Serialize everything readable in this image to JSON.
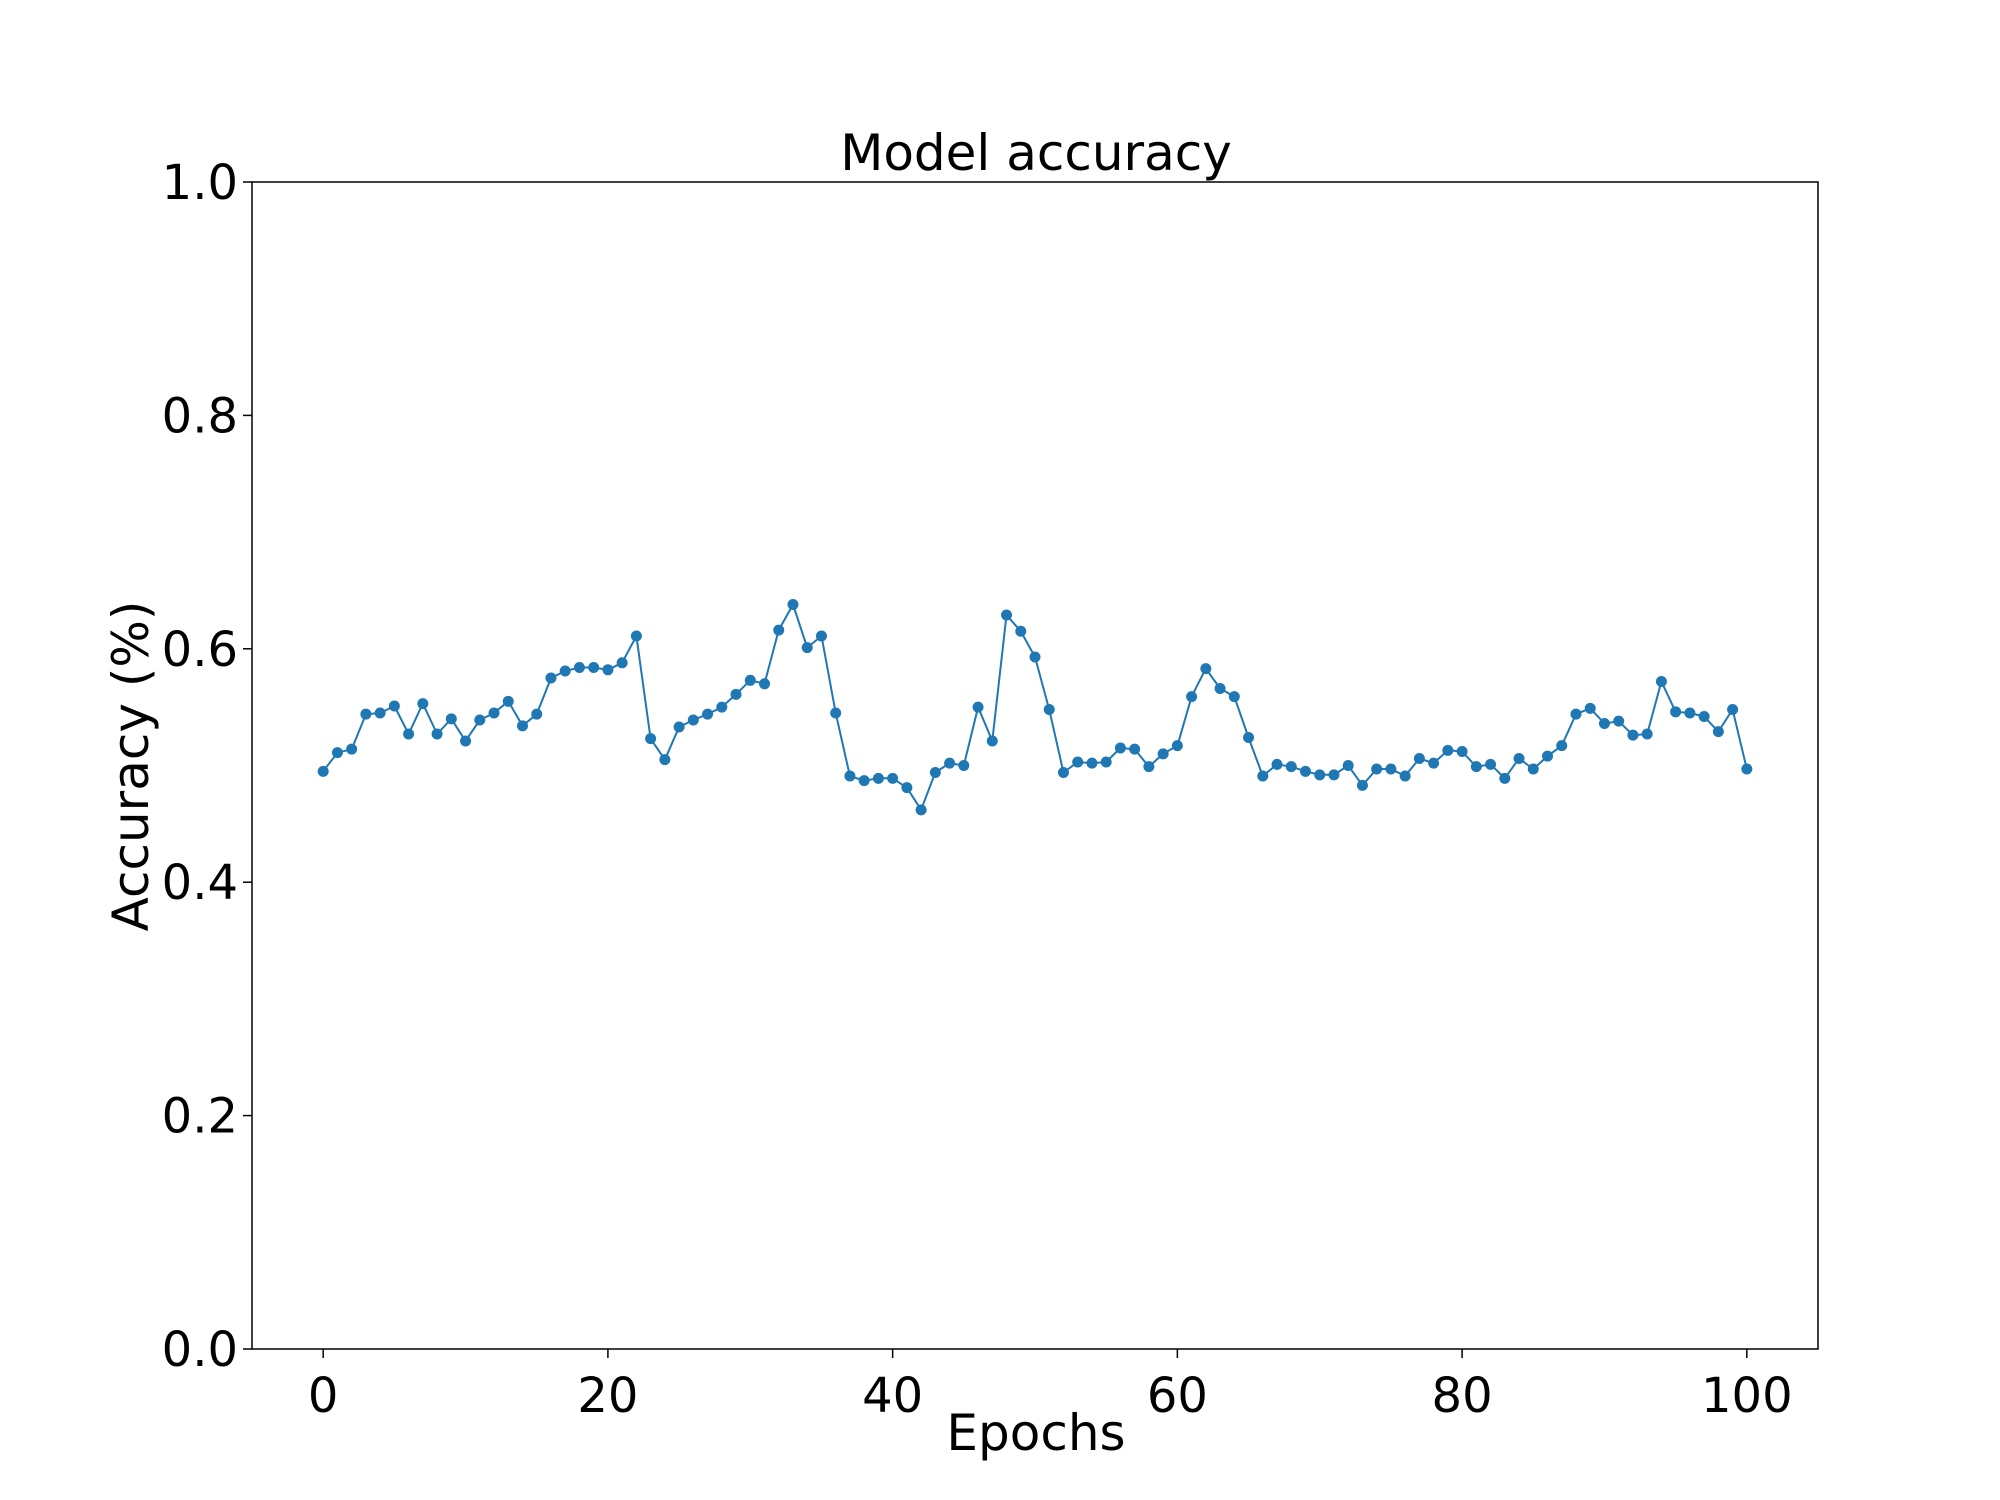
{
  "chart_data": {
    "type": "line",
    "title": "Model accuracy",
    "xlabel": "Epochs",
    "ylabel": "Accuracy (%)",
    "xlim": [
      -5,
      105
    ],
    "ylim": [
      0.0,
      1.0
    ],
    "xticks": [
      0,
      20,
      40,
      60,
      80,
      100
    ],
    "xtick_labels": [
      "0",
      "20",
      "40",
      "60",
      "80",
      "100"
    ],
    "yticks": [
      0.0,
      0.2,
      0.4,
      0.6,
      0.8,
      1.0
    ],
    "ytick_labels": [
      "0.0",
      "0.2",
      "0.4",
      "0.6",
      "0.8",
      "1.0"
    ],
    "grid": false,
    "legend": "none",
    "series": [
      {
        "color": "#1f77b4",
        "marker": "circle",
        "x": [
          0,
          1,
          2,
          3,
          4,
          5,
          6,
          7,
          8,
          9,
          10,
          11,
          12,
          13,
          14,
          15,
          16,
          17,
          18,
          19,
          20,
          21,
          22,
          23,
          24,
          25,
          26,
          27,
          28,
          29,
          30,
          31,
          32,
          33,
          34,
          35,
          36,
          37,
          38,
          39,
          40,
          41,
          42,
          43,
          44,
          45,
          46,
          47,
          48,
          49,
          50,
          51,
          52,
          53,
          54,
          55,
          56,
          57,
          58,
          59,
          60,
          61,
          62,
          63,
          64,
          65,
          66,
          67,
          68,
          69,
          70,
          71,
          72,
          73,
          74,
          75,
          76,
          77,
          78,
          79,
          80,
          81,
          82,
          83,
          84,
          85,
          86,
          87,
          88,
          89,
          90,
          91,
          92,
          93,
          94,
          95,
          96,
          97,
          98,
          99,
          100
        ],
        "y": [
          0.495,
          0.511,
          0.514,
          0.544,
          0.545,
          0.551,
          0.527,
          0.553,
          0.527,
          0.54,
          0.521,
          0.539,
          0.545,
          0.555,
          0.534,
          0.544,
          0.575,
          0.581,
          0.584,
          0.584,
          0.582,
          0.588,
          0.611,
          0.523,
          0.505,
          0.533,
          0.539,
          0.544,
          0.55,
          0.561,
          0.573,
          0.57,
          0.616,
          0.638,
          0.601,
          0.611,
          0.545,
          0.491,
          0.487,
          0.489,
          0.489,
          0.481,
          0.462,
          0.494,
          0.502,
          0.5,
          0.55,
          0.521,
          0.629,
          0.615,
          0.593,
          0.548,
          0.494,
          0.503,
          0.502,
          0.503,
          0.515,
          0.514,
          0.499,
          0.51,
          0.517,
          0.559,
          0.583,
          0.566,
          0.559,
          0.524,
          0.491,
          0.501,
          0.499,
          0.495,
          0.492,
          0.492,
          0.5,
          0.483,
          0.497,
          0.497,
          0.491,
          0.506,
          0.502,
          0.513,
          0.512,
          0.499,
          0.501,
          0.489,
          0.506,
          0.497,
          0.508,
          0.517,
          0.544,
          0.549,
          0.536,
          0.538,
          0.526,
          0.527,
          0.572,
          0.546,
          0.545,
          0.542,
          0.529,
          0.548,
          0.497
        ]
      }
    ]
  }
}
